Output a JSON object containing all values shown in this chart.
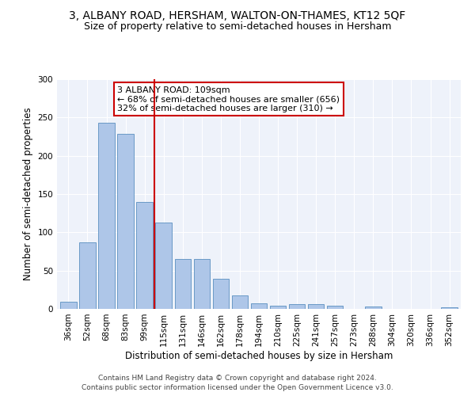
{
  "title": "3, ALBANY ROAD, HERSHAM, WALTON-ON-THAMES, KT12 5QF",
  "subtitle": "Size of property relative to semi-detached houses in Hersham",
  "xlabel": "Distribution of semi-detached houses by size in Hersham",
  "ylabel": "Number of semi-detached properties",
  "categories": [
    "36sqm",
    "52sqm",
    "68sqm",
    "83sqm",
    "99sqm",
    "115sqm",
    "131sqm",
    "146sqm",
    "162sqm",
    "178sqm",
    "194sqm",
    "210sqm",
    "225sqm",
    "241sqm",
    "257sqm",
    "273sqm",
    "288sqm",
    "304sqm",
    "320sqm",
    "336sqm",
    "352sqm"
  ],
  "values": [
    9,
    87,
    243,
    229,
    140,
    113,
    65,
    65,
    39,
    18,
    7,
    4,
    6,
    6,
    4,
    0,
    3,
    0,
    0,
    0,
    2
  ],
  "bar_color": "#aec6e8",
  "bar_edge_color": "#5a8fc0",
  "vline_x": 4.5,
  "vline_color": "#cc0000",
  "annotation_line1": "3 ALBANY ROAD: 109sqm",
  "annotation_line2": "← 68% of semi-detached houses are smaller (656)",
  "annotation_line3": "32% of semi-detached houses are larger (310) →",
  "annotation_box_color": "#ffffff",
  "annotation_box_edge_color": "#cc0000",
  "ylim": [
    0,
    300
  ],
  "yticks": [
    0,
    50,
    100,
    150,
    200,
    250,
    300
  ],
  "footer1": "Contains HM Land Registry data © Crown copyright and database right 2024.",
  "footer2": "Contains public sector information licensed under the Open Government Licence v3.0.",
  "background_color": "#eef2fa",
  "title_fontsize": 10,
  "subtitle_fontsize": 9,
  "xlabel_fontsize": 8.5,
  "ylabel_fontsize": 8.5,
  "tick_fontsize": 7.5,
  "footer_fontsize": 6.5,
  "annotation_fontsize": 8
}
